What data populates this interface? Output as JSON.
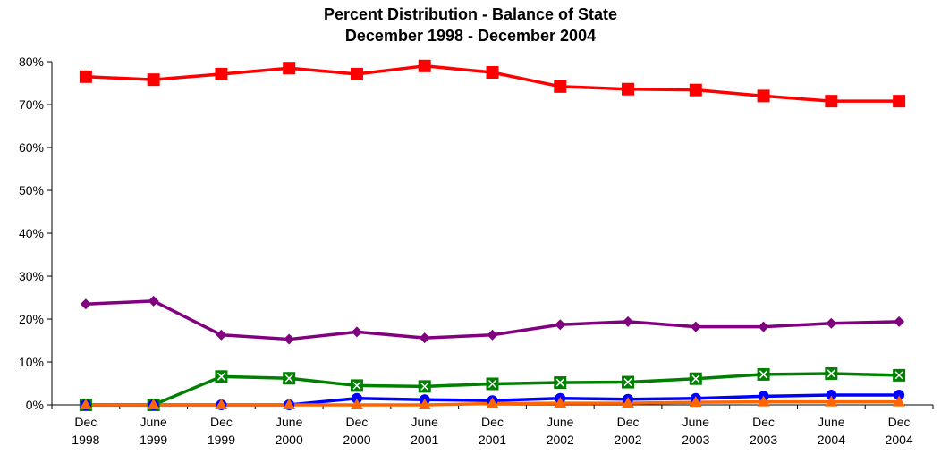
{
  "chart_data": {
    "type": "line",
    "title": "Percent Distribution - Balance of State",
    "subtitle": "December 1998 - December 2004",
    "categories": [
      [
        "Dec",
        "1998"
      ],
      [
        "June",
        "1999"
      ],
      [
        "Dec",
        "1999"
      ],
      [
        "June",
        "2000"
      ],
      [
        "Dec",
        "2000"
      ],
      [
        "June",
        "2001"
      ],
      [
        "Dec",
        "2001"
      ],
      [
        "June",
        "2002"
      ],
      [
        "Dec",
        "2002"
      ],
      [
        "June",
        "2003"
      ],
      [
        "Dec",
        "2003"
      ],
      [
        "June",
        "2004"
      ],
      [
        "Dec",
        "2004"
      ]
    ],
    "ylim": [
      0,
      80
    ],
    "yticks": [
      "0%",
      "10%",
      "20%",
      "30%",
      "40%",
      "50%",
      "60%",
      "70%",
      "80%"
    ],
    "grid": false,
    "legend": "none",
    "series": [
      {
        "color": "#ff0000",
        "marker": "square",
        "values": [
          76.5,
          75.8,
          77.1,
          78.5,
          77.1,
          79.0,
          77.5,
          74.2,
          73.6,
          73.4,
          72.0,
          70.8,
          70.8
        ]
      },
      {
        "color": "#800080",
        "marker": "diamond",
        "values": [
          23.5,
          24.2,
          16.3,
          15.3,
          17.0,
          15.6,
          16.3,
          18.7,
          19.4,
          18.2,
          18.2,
          19.0,
          19.4
        ]
      },
      {
        "color": "#008000",
        "marker": "boxed-x",
        "values": [
          0.0,
          0.0,
          6.6,
          6.2,
          4.5,
          4.3,
          4.9,
          5.2,
          5.3,
          6.1,
          7.1,
          7.3,
          6.9
        ]
      },
      {
        "color": "#0000ff",
        "marker": "circle",
        "values": [
          0.0,
          0.0,
          0.0,
          0.0,
          1.5,
          1.2,
          1.0,
          1.5,
          1.3,
          1.5,
          2.0,
          2.3,
          2.3
        ]
      },
      {
        "color": "#ff6600",
        "marker": "triangle",
        "values": [
          0.0,
          0.0,
          0.0,
          0.0,
          0.0,
          0.0,
          0.3,
          0.4,
          0.4,
          0.6,
          0.7,
          0.7,
          0.7
        ]
      }
    ]
  }
}
